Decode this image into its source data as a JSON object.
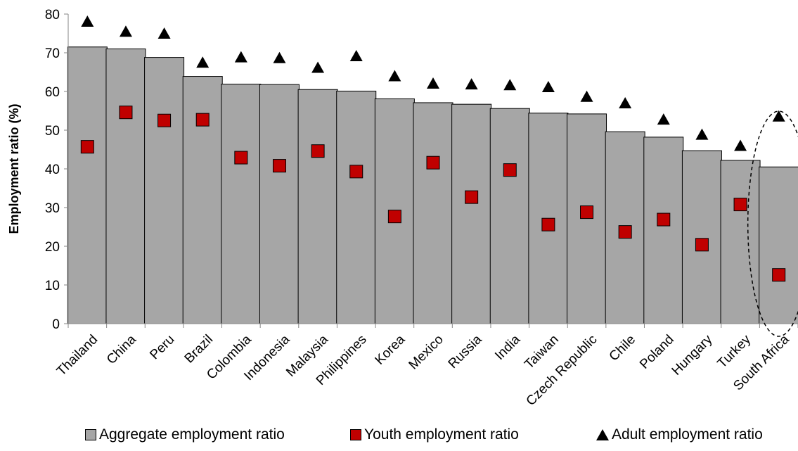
{
  "chart_data": {
    "type": "bar",
    "title": "",
    "xlabel": "",
    "ylabel": "Employment ratio (%)",
    "ylim": [
      0,
      80
    ],
    "yticks": [
      0,
      10,
      20,
      30,
      40,
      50,
      60,
      70,
      80
    ],
    "grid": false,
    "legend_position": "bottom",
    "categories": [
      "Thailand",
      "China",
      "Peru",
      "Brazil",
      "Colombia",
      "Indonesia",
      "Malaysia",
      "Philippines",
      "Korea",
      "Mexico",
      "Russia",
      "India",
      "Taiwan",
      "Czech Republic",
      "Chile",
      "Poland",
      "Hungary",
      "Turkey",
      "South Africa"
    ],
    "series": [
      {
        "name": "Aggregate employment ratio",
        "marker": "bar",
        "color": "#a6a6a6",
        "values": [
          71.5,
          71,
          68.8,
          63.9,
          61.9,
          61.8,
          60.5,
          60.1,
          58.1,
          57.1,
          56.7,
          55.6,
          54.4,
          54.2,
          49.6,
          48.2,
          44.7,
          42.2,
          40.5
        ]
      },
      {
        "name": "Youth employment ratio",
        "marker": "square",
        "color": "#c00000",
        "values": [
          45.7,
          54.6,
          52.5,
          52.7,
          42.9,
          40.8,
          44.6,
          39.3,
          27.7,
          41.6,
          32.7,
          39.7,
          25.6,
          28.8,
          23.7,
          26.9,
          20.4,
          30.8,
          12.6
        ]
      },
      {
        "name": "Adult employment ratio",
        "marker": "triangle",
        "color": "#000000",
        "values": [
          78,
          75.4,
          74.9,
          67.4,
          68.8,
          68.6,
          66.1,
          69.1,
          63.9,
          62,
          61.8,
          61.6,
          61.1,
          58.6,
          56.9,
          52.7,
          48.8,
          45.9,
          53.5
        ]
      }
    ],
    "annotations": [
      {
        "type": "dashed-ellipse",
        "category": "South Africa"
      }
    ]
  }
}
